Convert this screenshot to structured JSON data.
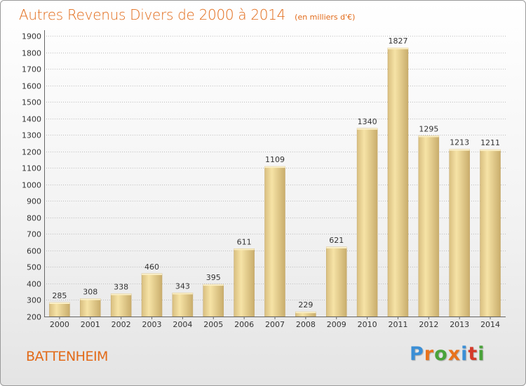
{
  "header": {
    "title": "Autres Revenus Divers de 2000 à 2014",
    "subtitle": "(en milliers d'€)"
  },
  "footer": {
    "commune": "BATTENHEIM",
    "logo_text": "Proxiti",
    "logo_colors": [
      "#3b8fd6",
      "#e8721c",
      "#4aa33a",
      "#e8721c",
      "#3b8fd6",
      "#d43a2a",
      "#4aa33a"
    ]
  },
  "colors": {
    "accent": "#e26a18",
    "bar_light": "#f6e3a6",
    "bar_dark": "#c9ad6c",
    "grid": "#bdbdbd",
    "axis_text": "#333333"
  },
  "chart_data": {
    "type": "bar",
    "categories": [
      "2000",
      "2001",
      "2002",
      "2003",
      "2004",
      "2005",
      "2006",
      "2007",
      "2008",
      "2009",
      "2010",
      "2011",
      "2012",
      "2013",
      "2014"
    ],
    "values": [
      285,
      308,
      338,
      460,
      343,
      395,
      611,
      1109,
      229,
      621,
      1340,
      1827,
      1295,
      1213,
      1211
    ],
    "ylim": [
      200,
      1900
    ],
    "yticks": [
      200,
      300,
      400,
      500,
      600,
      700,
      800,
      900,
      1000,
      1100,
      1200,
      1300,
      1400,
      1500,
      1600,
      1700,
      1800,
      1900
    ],
    "grid": true,
    "xlabel": "",
    "ylabel": ""
  }
}
